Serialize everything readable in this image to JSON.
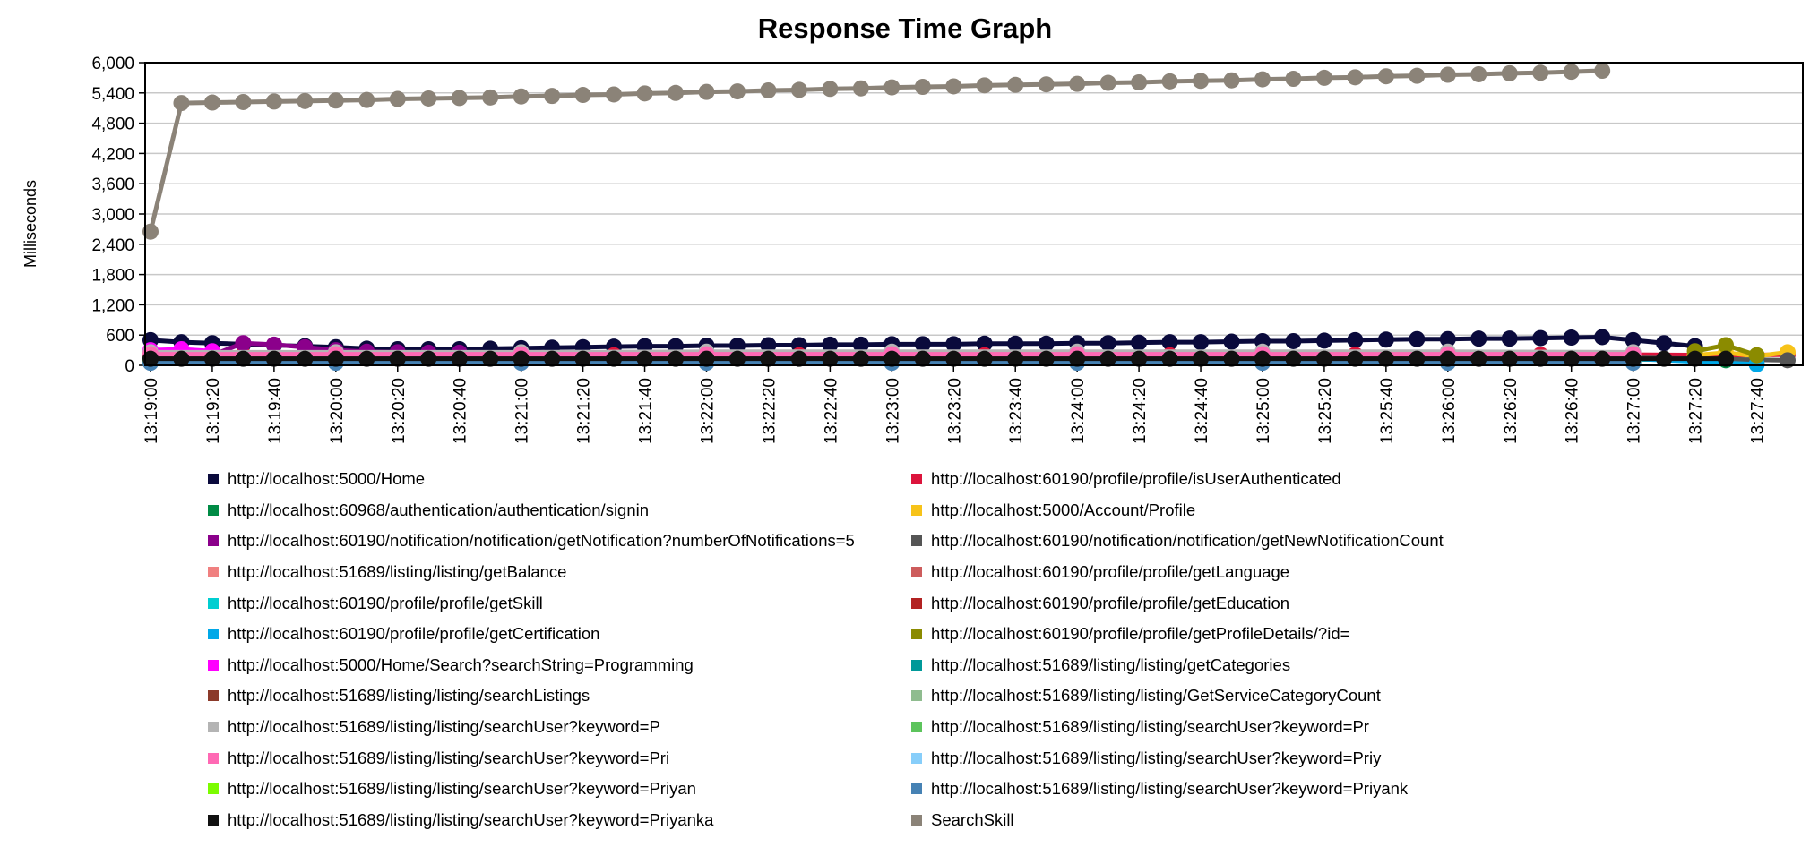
{
  "chart_data": {
    "type": "line",
    "title": "Response Time Graph",
    "ylabel": "Milliseconds",
    "xlabel": "",
    "ylim": [
      0,
      6000
    ],
    "yticks": [
      "0",
      "600",
      "1,200",
      "1,800",
      "2,400",
      "3,000",
      "3,600",
      "4,200",
      "4,800",
      "5,400",
      "6,000"
    ],
    "xticks": [
      "13:19:00",
      "13:19:20",
      "13:19:40",
      "13:20:00",
      "13:20:20",
      "13:20:40",
      "13:21:00",
      "13:21:20",
      "13:21:40",
      "13:22:00",
      "13:22:20",
      "13:22:40",
      "13:23:00",
      "13:23:20",
      "13:23:40",
      "13:24:00",
      "13:24:20",
      "13:24:40",
      "13:25:00",
      "13:25:20",
      "13:25:40",
      "13:26:00",
      "13:26:20",
      "13:26:40",
      "13:27:00",
      "13:27:20",
      "13:27:40"
    ],
    "grid": true,
    "legend_position": "bottom",
    "series": [
      {
        "name": "http://localhost:5000/Home",
        "color": "#0a0a3c",
        "x": [
          "13:19:00",
          "13:19:10",
          "13:19:20",
          "13:19:30",
          "13:19:40",
          "13:19:50",
          "13:20:00",
          "13:20:10",
          "13:20:20",
          "13:20:30",
          "13:20:40",
          "13:20:50",
          "13:21:00",
          "13:21:10",
          "13:21:20",
          "13:21:30",
          "13:21:40",
          "13:21:50",
          "13:22:00",
          "13:22:10",
          "13:22:20",
          "13:22:30",
          "13:22:40",
          "13:22:50",
          "13:23:00",
          "13:23:10",
          "13:23:20",
          "13:23:30",
          "13:23:40",
          "13:23:50",
          "13:24:00",
          "13:24:10",
          "13:24:20",
          "13:24:30",
          "13:24:40",
          "13:24:50",
          "13:25:00",
          "13:25:10",
          "13:25:20",
          "13:25:30",
          "13:25:40",
          "13:25:50",
          "13:26:00",
          "13:26:10",
          "13:26:20",
          "13:26:30",
          "13:26:40",
          "13:26:50",
          "13:27:00",
          "13:27:10",
          "13:27:20"
        ],
        "values": [
          500,
          460,
          440,
          420,
          400,
          380,
          360,
          330,
          320,
          320,
          320,
          330,
          340,
          350,
          360,
          370,
          380,
          380,
          390,
          390,
          400,
          400,
          410,
          410,
          420,
          420,
          420,
          430,
          430,
          430,
          440,
          440,
          450,
          460,
          460,
          470,
          480,
          480,
          490,
          500,
          510,
          520,
          520,
          530,
          530,
          540,
          550,
          560,
          500,
          440,
          380
        ]
      },
      {
        "name": "http://localhost:60190/profile/profile/isUserAuthenticated",
        "color": "#dc143c",
        "x": [
          "13:19:00",
          "13:19:30",
          "13:20:00",
          "13:20:30",
          "13:21:00",
          "13:21:30",
          "13:22:00",
          "13:22:30",
          "13:23:00",
          "13:23:30",
          "13:24:00",
          "13:24:30",
          "13:25:00",
          "13:25:30",
          "13:26:00",
          "13:26:30",
          "13:27:00",
          "13:27:30",
          "13:27:50"
        ],
        "values": [
          210,
          210,
          200,
          200,
          200,
          200,
          200,
          200,
          200,
          200,
          200,
          200,
          210,
          210,
          210,
          210,
          210,
          200,
          210
        ]
      },
      {
        "name": "http://localhost:60968/authentication/authentication/signin",
        "color": "#008b45",
        "x": [
          "13:19:00",
          "13:20:00",
          "13:21:00",
          "13:22:00",
          "13:23:00",
          "13:24:00",
          "13:25:00",
          "13:26:00",
          "13:27:00",
          "13:27:30"
        ],
        "values": [
          120,
          120,
          120,
          120,
          120,
          120,
          120,
          120,
          120,
          100
        ]
      },
      {
        "name": "http://localhost:5000/Account/Profile",
        "color": "#f7c319",
        "x": [
          "13:27:20",
          "13:27:30",
          "13:27:40",
          "13:27:50"
        ],
        "values": [
          200,
          250,
          180,
          260
        ]
      },
      {
        "name": "http://localhost:60190/notification/notification/getNotification?numberOfNotifications=5",
        "color": "#8b008b",
        "x": [
          "13:19:00",
          "13:19:10",
          "13:19:20",
          "13:19:30",
          "13:19:40",
          "13:19:50",
          "13:20:00",
          "13:20:10",
          "13:20:20",
          "13:20:30",
          "13:20:40"
        ],
        "values": [
          250,
          230,
          200,
          440,
          410,
          360,
          300,
          270,
          260,
          250,
          250
        ]
      },
      {
        "name": "http://localhost:60190/notification/notification/getNewNotificationCount",
        "color": "#555555",
        "x": [
          "13:19:00",
          "13:20:00",
          "13:21:00",
          "13:22:00",
          "13:23:00",
          "13:24:00",
          "13:25:00",
          "13:26:00",
          "13:27:00",
          "13:27:50"
        ],
        "values": [
          150,
          150,
          150,
          150,
          150,
          150,
          150,
          150,
          150,
          100
        ]
      },
      {
        "name": "http://localhost:51689/listing/listing/getBalance",
        "color": "#f08080",
        "x": [
          "13:19:00",
          "13:20:00",
          "13:21:00",
          "13:22:00",
          "13:23:00",
          "13:24:00",
          "13:25:00",
          "13:26:00",
          "13:27:00"
        ],
        "values": [
          180,
          180,
          180,
          180,
          180,
          180,
          180,
          180,
          180
        ]
      },
      {
        "name": "http://localhost:60190/profile/profile/getLanguage",
        "color": "#cd5c5c",
        "x": [
          "13:19:00",
          "13:20:00",
          "13:21:00",
          "13:22:00",
          "13:23:00",
          "13:24:00",
          "13:25:00",
          "13:26:00",
          "13:27:00"
        ],
        "values": [
          170,
          170,
          170,
          170,
          170,
          170,
          170,
          170,
          170
        ]
      },
      {
        "name": "http://localhost:60190/profile/profile/getSkill",
        "color": "#00ced1",
        "x": [
          "13:19:00",
          "13:20:00",
          "13:21:00",
          "13:22:00",
          "13:23:00",
          "13:24:00",
          "13:25:00",
          "13:26:00",
          "13:27:00"
        ],
        "values": [
          140,
          140,
          140,
          140,
          140,
          140,
          140,
          140,
          140
        ]
      },
      {
        "name": "http://localhost:60190/profile/profile/getEducation",
        "color": "#b22222",
        "x": [
          "13:19:00",
          "13:20:00",
          "13:21:00",
          "13:22:00",
          "13:23:00",
          "13:24:00",
          "13:25:00",
          "13:26:00",
          "13:27:00"
        ],
        "values": [
          160,
          160,
          160,
          160,
          160,
          160,
          160,
          160,
          160
        ]
      },
      {
        "name": "http://localhost:60190/profile/profile/getCertification",
        "color": "#00a8e8",
        "x": [
          "13:19:00",
          "13:20:00",
          "13:21:00",
          "13:22:00",
          "13:23:00",
          "13:24:00",
          "13:25:00",
          "13:26:00",
          "13:27:00",
          "13:27:40"
        ],
        "values": [
          130,
          130,
          130,
          130,
          130,
          130,
          130,
          130,
          130,
          20
        ]
      },
      {
        "name": "http://localhost:60190/profile/profile/getProfileDetails/?id=",
        "color": "#8b8b00",
        "x": [
          "13:27:20",
          "13:27:30",
          "13:27:40"
        ],
        "values": [
          280,
          400,
          200
        ]
      },
      {
        "name": "http://localhost:5000/Home/Search?searchString=Programming",
        "color": "#ff00ff",
        "x": [
          "13:19:00",
          "13:19:10",
          "13:19:20"
        ],
        "values": [
          300,
          320,
          280
        ]
      },
      {
        "name": "http://localhost:51689/listing/listing/getCategories",
        "color": "#009999",
        "x": [
          "13:19:00",
          "13:20:00",
          "13:21:00",
          "13:22:00",
          "13:23:00",
          "13:24:00",
          "13:25:00",
          "13:26:00",
          "13:27:00"
        ],
        "values": [
          110,
          110,
          110,
          110,
          110,
          110,
          110,
          110,
          110
        ]
      },
      {
        "name": "http://localhost:51689/listing/listing/searchListings",
        "color": "#8b3a2a",
        "x": [
          "13:19:00",
          "13:20:00",
          "13:21:00",
          "13:22:00",
          "13:23:00",
          "13:24:00",
          "13:25:00",
          "13:26:00",
          "13:27:00"
        ],
        "values": [
          190,
          190,
          190,
          190,
          190,
          190,
          190,
          190,
          190
        ]
      },
      {
        "name": "http://localhost:51689/listing/listing/GetServiceCategoryCount",
        "color": "#8fbc8f",
        "x": [
          "13:19:00",
          "13:20:00",
          "13:21:00",
          "13:22:00",
          "13:23:00",
          "13:24:00",
          "13:25:00",
          "13:26:00",
          "13:27:00"
        ],
        "values": [
          90,
          90,
          90,
          90,
          90,
          90,
          90,
          90,
          90
        ]
      },
      {
        "name": "http://localhost:51689/listing/listing/searchUser?keyword=P",
        "color": "#b4b4b4",
        "x": [
          "13:19:00",
          "13:20:00",
          "13:21:00",
          "13:22:00",
          "13:23:00",
          "13:24:00",
          "13:25:00",
          "13:26:00",
          "13:27:00"
        ],
        "values": [
          260,
          260,
          260,
          270,
          270,
          270,
          270,
          270,
          260
        ]
      },
      {
        "name": "http://localhost:51689/listing/listing/searchUser?keyword=Pr",
        "color": "#5cc45c",
        "x": [
          "13:19:00",
          "13:20:00",
          "13:21:00",
          "13:22:00",
          "13:23:00",
          "13:24:00",
          "13:25:00",
          "13:26:00",
          "13:27:00"
        ],
        "values": [
          80,
          80,
          80,
          80,
          80,
          80,
          80,
          80,
          80
        ]
      },
      {
        "name": "http://localhost:51689/listing/listing/searchUser?keyword=Pri",
        "color": "#ff69b4",
        "x": [
          "13:19:00",
          "13:20:00",
          "13:21:00",
          "13:22:00",
          "13:23:00",
          "13:24:00",
          "13:25:00",
          "13:26:00",
          "13:27:00"
        ],
        "values": [
          220,
          220,
          220,
          220,
          220,
          220,
          220,
          220,
          220
        ]
      },
      {
        "name": "http://localhost:51689/listing/listing/searchUser?keyword=Priy",
        "color": "#87cefa",
        "x": [
          "13:19:00",
          "13:20:00",
          "13:21:00",
          "13:22:00",
          "13:23:00",
          "13:24:00",
          "13:25:00",
          "13:26:00",
          "13:27:00"
        ],
        "values": [
          70,
          70,
          70,
          70,
          70,
          70,
          70,
          70,
          70
        ]
      },
      {
        "name": "http://localhost:51689/listing/listing/searchUser?keyword=Priyan",
        "color": "#7cfc00",
        "x": [
          "13:19:00",
          "13:20:00",
          "13:21:00",
          "13:22:00",
          "13:23:00",
          "13:24:00",
          "13:25:00",
          "13:26:00",
          "13:27:00"
        ],
        "values": [
          60,
          60,
          60,
          60,
          60,
          60,
          60,
          60,
          60
        ]
      },
      {
        "name": "http://localhost:51689/listing/listing/searchUser?keyword=Priyank",
        "color": "#4682b4",
        "x": [
          "13:19:00",
          "13:20:00",
          "13:21:00",
          "13:22:00",
          "13:23:00",
          "13:24:00",
          "13:25:00",
          "13:26:00",
          "13:27:00"
        ],
        "values": [
          50,
          50,
          50,
          50,
          50,
          50,
          50,
          50,
          50
        ]
      },
      {
        "name": "http://localhost:51689/listing/listing/searchUser?keyword=Priyanka",
        "color": "#111111",
        "x": [
          "13:19:00",
          "13:19:10",
          "13:19:20",
          "13:19:30",
          "13:19:40",
          "13:19:50",
          "13:20:00",
          "13:20:10",
          "13:20:20",
          "13:20:30",
          "13:20:40",
          "13:20:50",
          "13:21:00",
          "13:21:10",
          "13:21:20",
          "13:21:30",
          "13:21:40",
          "13:21:50",
          "13:22:00",
          "13:22:10",
          "13:22:20",
          "13:22:30",
          "13:22:40",
          "13:22:50",
          "13:23:00",
          "13:23:10",
          "13:23:20",
          "13:23:30",
          "13:23:40",
          "13:23:50",
          "13:24:00",
          "13:24:10",
          "13:24:20",
          "13:24:30",
          "13:24:40",
          "13:24:50",
          "13:25:00",
          "13:25:10",
          "13:25:20",
          "13:25:30",
          "13:25:40",
          "13:25:50",
          "13:26:00",
          "13:26:10",
          "13:26:20",
          "13:26:30",
          "13:26:40",
          "13:26:50",
          "13:27:00",
          "13:27:10",
          "13:27:20",
          "13:27:30"
        ],
        "values": [
          130,
          130,
          130,
          130,
          130,
          130,
          130,
          130,
          130,
          130,
          130,
          130,
          130,
          130,
          130,
          130,
          130,
          130,
          130,
          130,
          130,
          130,
          130,
          130,
          130,
          130,
          130,
          130,
          130,
          130,
          130,
          130,
          130,
          130,
          130,
          130,
          130,
          130,
          130,
          130,
          130,
          130,
          130,
          130,
          130,
          130,
          130,
          130,
          130,
          130,
          130,
          130
        ]
      },
      {
        "name": "SearchSkill",
        "color": "#8b8378",
        "x": [
          "13:19:00",
          "13:19:10",
          "13:19:20",
          "13:19:30",
          "13:19:40",
          "13:19:50",
          "13:20:00",
          "13:20:10",
          "13:20:20",
          "13:20:30",
          "13:20:40",
          "13:20:50",
          "13:21:00",
          "13:21:10",
          "13:21:20",
          "13:21:30",
          "13:21:40",
          "13:21:50",
          "13:22:00",
          "13:22:10",
          "13:22:20",
          "13:22:30",
          "13:22:40",
          "13:22:50",
          "13:23:00",
          "13:23:10",
          "13:23:20",
          "13:23:30",
          "13:23:40",
          "13:23:50",
          "13:24:00",
          "13:24:10",
          "13:24:20",
          "13:24:30",
          "13:24:40",
          "13:24:50",
          "13:25:00",
          "13:25:10",
          "13:25:20",
          "13:25:30",
          "13:25:40",
          "13:25:50",
          "13:26:00",
          "13:26:10",
          "13:26:20",
          "13:26:30",
          "13:26:40",
          "13:26:50"
        ],
        "values": [
          2650,
          5200,
          5210,
          5220,
          5230,
          5240,
          5250,
          5260,
          5280,
          5290,
          5300,
          5310,
          5330,
          5340,
          5360,
          5370,
          5390,
          5400,
          5420,
          5430,
          5450,
          5460,
          5480,
          5490,
          5510,
          5520,
          5530,
          5550,
          5560,
          5570,
          5580,
          5600,
          5610,
          5630,
          5640,
          5650,
          5670,
          5680,
          5700,
          5710,
          5730,
          5740,
          5760,
          5770,
          5790,
          5800,
          5820,
          5840
        ]
      }
    ]
  }
}
